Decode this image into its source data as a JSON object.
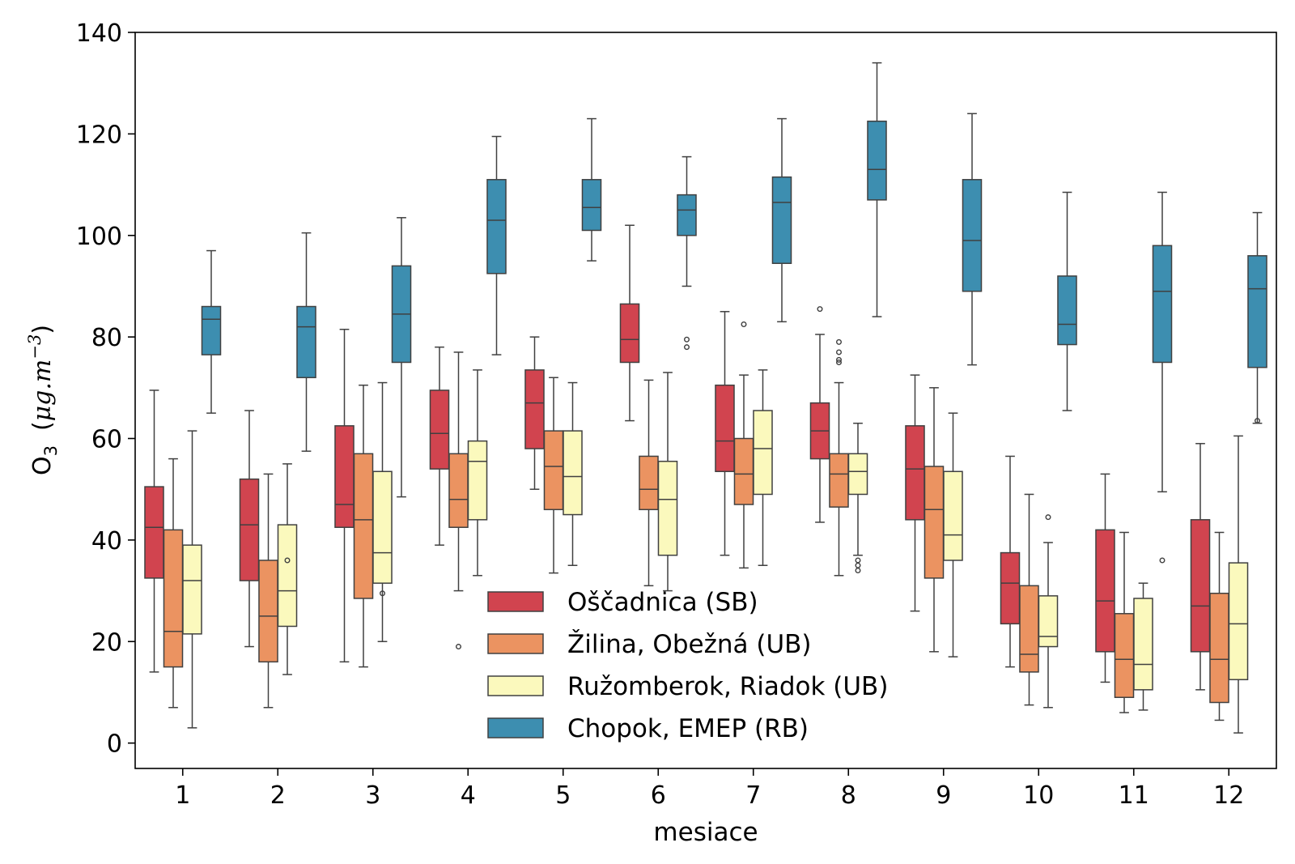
{
  "chart_data": {
    "type": "boxplot",
    "title": "",
    "xlabel": "mesiace",
    "ylabel": {
      "main": "O",
      "sub": "3",
      "unit_open": "(",
      "unit_mu": "μg.m",
      "unit_exp": "−3",
      "unit_close": ")"
    },
    "categories": [
      "1",
      "2",
      "3",
      "4",
      "5",
      "6",
      "7",
      "8",
      "9",
      "10",
      "11",
      "12"
    ],
    "ylim": [
      -5,
      140
    ],
    "yticks": [
      0,
      20,
      40,
      60,
      80,
      100,
      120,
      140
    ],
    "legend_position": "lower-center",
    "series": [
      {
        "name": "Oščadnica (SB)",
        "color": "#d1444f",
        "boxes": [
          {
            "min": 14,
            "q1": 32.5,
            "median": 42.5,
            "q3": 50.5,
            "max": 69.5,
            "outliers": []
          },
          {
            "min": 19,
            "q1": 32,
            "median": 43,
            "q3": 52,
            "max": 65.5,
            "outliers": []
          },
          {
            "min": 16,
            "q1": 42.5,
            "median": 47,
            "q3": 62.5,
            "max": 81.5,
            "outliers": []
          },
          {
            "min": 39,
            "q1": 54,
            "median": 61,
            "q3": 69.5,
            "max": 78,
            "outliers": []
          },
          {
            "min": 50,
            "q1": 58,
            "median": 67,
            "q3": 73.5,
            "max": 80,
            "outliers": []
          },
          {
            "min": 63.5,
            "q1": 75,
            "median": 79.5,
            "q3": 86.5,
            "max": 102,
            "outliers": []
          },
          {
            "min": 37,
            "q1": 53.5,
            "median": 59.5,
            "q3": 70.5,
            "max": 85,
            "outliers": []
          },
          {
            "min": 43.5,
            "q1": 56,
            "median": 61.5,
            "q3": 67,
            "max": 80.5,
            "outliers": [
              85.5
            ]
          },
          {
            "min": 26,
            "q1": 44,
            "median": 54,
            "q3": 62.5,
            "max": 72.5,
            "outliers": []
          },
          {
            "min": 15,
            "q1": 23.5,
            "median": 31.5,
            "q3": 37.5,
            "max": 56.5,
            "outliers": []
          },
          {
            "min": 12,
            "q1": 18,
            "median": 28,
            "q3": 42,
            "max": 53,
            "outliers": []
          },
          {
            "min": 10.5,
            "q1": 18,
            "median": 27,
            "q3": 44,
            "max": 59,
            "outliers": []
          }
        ]
      },
      {
        "name": "Žilina, Obežná (UB)",
        "color": "#eb9361",
        "boxes": [
          {
            "min": 7,
            "q1": 15,
            "median": 22,
            "q3": 42,
            "max": 56,
            "outliers": []
          },
          {
            "min": 7,
            "q1": 16,
            "median": 25,
            "q3": 36,
            "max": 53,
            "outliers": []
          },
          {
            "min": 15,
            "q1": 28.5,
            "median": 44,
            "q3": 57,
            "max": 70.5,
            "outliers": []
          },
          {
            "min": 30,
            "q1": 42.5,
            "median": 48,
            "q3": 57,
            "max": 77,
            "outliers": [
              19
            ]
          },
          {
            "min": 33.5,
            "q1": 46,
            "median": 54.5,
            "q3": 61.5,
            "max": 72,
            "outliers": []
          },
          {
            "min": 31,
            "q1": 46,
            "median": 50,
            "q3": 56.5,
            "max": 71.5,
            "outliers": []
          },
          {
            "min": 34.5,
            "q1": 47,
            "median": 53,
            "q3": 60,
            "max": 72.5,
            "outliers": [
              82.5
            ]
          },
          {
            "min": 33,
            "q1": 46.5,
            "median": 53,
            "q3": 57,
            "max": 71,
            "outliers": [
              75,
              75.5,
              77,
              79
            ]
          },
          {
            "min": 18,
            "q1": 32.5,
            "median": 46,
            "q3": 54.5,
            "max": 70,
            "outliers": []
          },
          {
            "min": 7.5,
            "q1": 14,
            "median": 17.5,
            "q3": 31,
            "max": 49,
            "outliers": []
          },
          {
            "min": 6,
            "q1": 9,
            "median": 16.5,
            "q3": 25.5,
            "max": 41.5,
            "outliers": []
          },
          {
            "min": 4.5,
            "q1": 8,
            "median": 16.5,
            "q3": 29.5,
            "max": 41.5,
            "outliers": []
          }
        ]
      },
      {
        "name": "Ružomberok, Riadok (UB)",
        "color": "#fbf9bd",
        "boxes": [
          {
            "min": 3,
            "q1": 21.5,
            "median": 32,
            "q3": 39,
            "max": 61.5,
            "outliers": []
          },
          {
            "min": 13.5,
            "q1": 23,
            "median": 30,
            "q3": 43,
            "max": 55,
            "outliers": [
              36
            ]
          },
          {
            "min": 20,
            "q1": 31.5,
            "median": 37.5,
            "q3": 53.5,
            "max": 71,
            "outliers": [
              29.5
            ]
          },
          {
            "min": 33,
            "q1": 44,
            "median": 55.5,
            "q3": 59.5,
            "max": 73.5,
            "outliers": []
          },
          {
            "min": 35,
            "q1": 45,
            "median": 52.5,
            "q3": 61.5,
            "max": 71,
            "outliers": []
          },
          {
            "min": 30,
            "q1": 37,
            "median": 48,
            "q3": 55.5,
            "max": 73,
            "outliers": []
          },
          {
            "min": 35,
            "q1": 49,
            "median": 58,
            "q3": 65.5,
            "max": 73.5,
            "outliers": []
          },
          {
            "min": 37,
            "q1": 49,
            "median": 53.5,
            "q3": 57,
            "max": 63,
            "outliers": [
              34,
              35,
              36
            ]
          },
          {
            "min": 17,
            "q1": 36,
            "median": 41,
            "q3": 53.5,
            "max": 65,
            "outliers": []
          },
          {
            "min": 7,
            "q1": 19,
            "median": 21,
            "q3": 29,
            "max": 39.5,
            "outliers": [
              44.5
            ]
          },
          {
            "min": 6.5,
            "q1": 10.5,
            "median": 15.5,
            "q3": 28.5,
            "max": 31.5,
            "outliers": []
          },
          {
            "min": 2,
            "q1": 12.5,
            "median": 23.5,
            "q3": 35.5,
            "max": 60.5,
            "outliers": []
          }
        ]
      },
      {
        "name": "Chopok, EMEP (RB)",
        "color": "#3d8eb0",
        "boxes": [
          {
            "min": 65,
            "q1": 76.5,
            "median": 83.5,
            "q3": 86,
            "max": 97,
            "outliers": []
          },
          {
            "min": 57.5,
            "q1": 72,
            "median": 82,
            "q3": 86,
            "max": 100.5,
            "outliers": []
          },
          {
            "min": 48.5,
            "q1": 75,
            "median": 84.5,
            "q3": 94,
            "max": 103.5,
            "outliers": []
          },
          {
            "min": 76.5,
            "q1": 92.5,
            "median": 103,
            "q3": 111,
            "max": 119.5,
            "outliers": []
          },
          {
            "min": 95,
            "q1": 101,
            "median": 105.5,
            "q3": 111,
            "max": 123,
            "outliers": []
          },
          {
            "min": 90,
            "q1": 100,
            "median": 105,
            "q3": 108,
            "max": 115.5,
            "outliers": [
              78,
              79.5
            ]
          },
          {
            "min": 83,
            "q1": 94.5,
            "median": 106.5,
            "q3": 111.5,
            "max": 123,
            "outliers": []
          },
          {
            "min": 84,
            "q1": 107,
            "median": 113,
            "q3": 122.5,
            "max": 134,
            "outliers": []
          },
          {
            "min": 74.5,
            "q1": 89,
            "median": 99,
            "q3": 111,
            "max": 124,
            "outliers": []
          },
          {
            "min": 65.5,
            "q1": 78.5,
            "median": 82.5,
            "q3": 92,
            "max": 108.5,
            "outliers": []
          },
          {
            "min": 49.5,
            "q1": 75,
            "median": 89,
            "q3": 98,
            "max": 108.5,
            "outliers": [
              36
            ]
          },
          {
            "min": 63,
            "q1": 74,
            "median": 89.5,
            "q3": 96,
            "max": 104.5,
            "outliers": [
              63.5
            ]
          }
        ]
      }
    ]
  }
}
